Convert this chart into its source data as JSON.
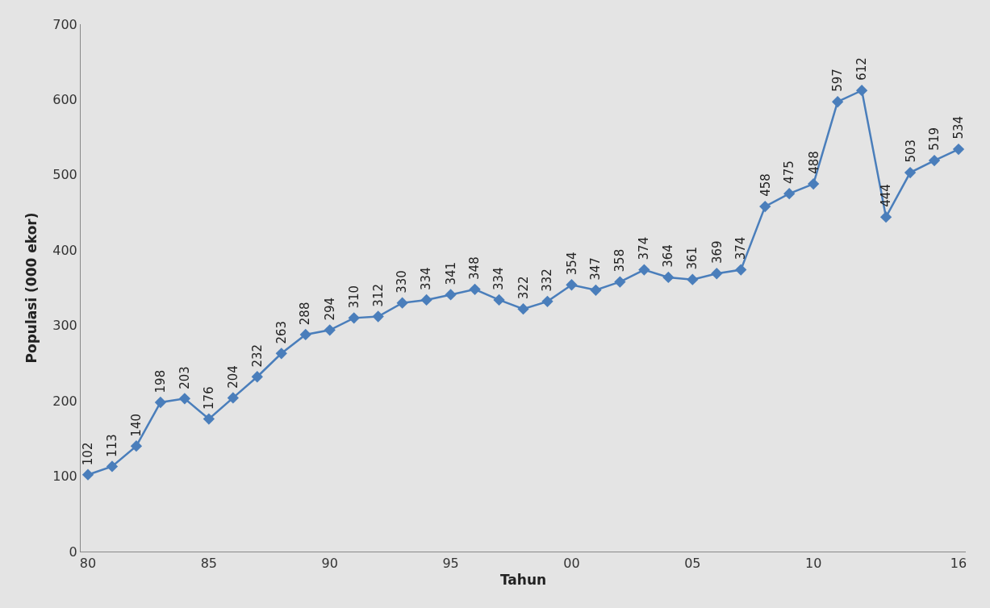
{
  "chart_data": {
    "type": "line",
    "xlabel": "Tahun",
    "ylabel": "Populasi (000 ekor)",
    "categories": [
      "80",
      null,
      null,
      null,
      null,
      "85",
      null,
      null,
      null,
      null,
      "90",
      null,
      null,
      null,
      null,
      "95",
      null,
      null,
      null,
      null,
      "00",
      null,
      null,
      null,
      null,
      "05",
      null,
      null,
      null,
      null,
      "10",
      null,
      null,
      null,
      null,
      null,
      "16"
    ],
    "series": [
      {
        "color": "#4a7ebb",
        "values": [
          102,
          113,
          140,
          198,
          203,
          176,
          204,
          232,
          263,
          288,
          294,
          310,
          312,
          330,
          334,
          341,
          348,
          334,
          322,
          332,
          354,
          347,
          358,
          374,
          364,
          361,
          369,
          374,
          458,
          475,
          488,
          597,
          612,
          444,
          503,
          519,
          534
        ]
      }
    ],
    "ylim": [
      0,
      700
    ],
    "yticks": [
      0,
      100,
      200,
      300,
      400,
      500,
      600,
      700
    ],
    "grid": false,
    "marker": "diamond",
    "line_style": "solid",
    "data_labels": true
  }
}
